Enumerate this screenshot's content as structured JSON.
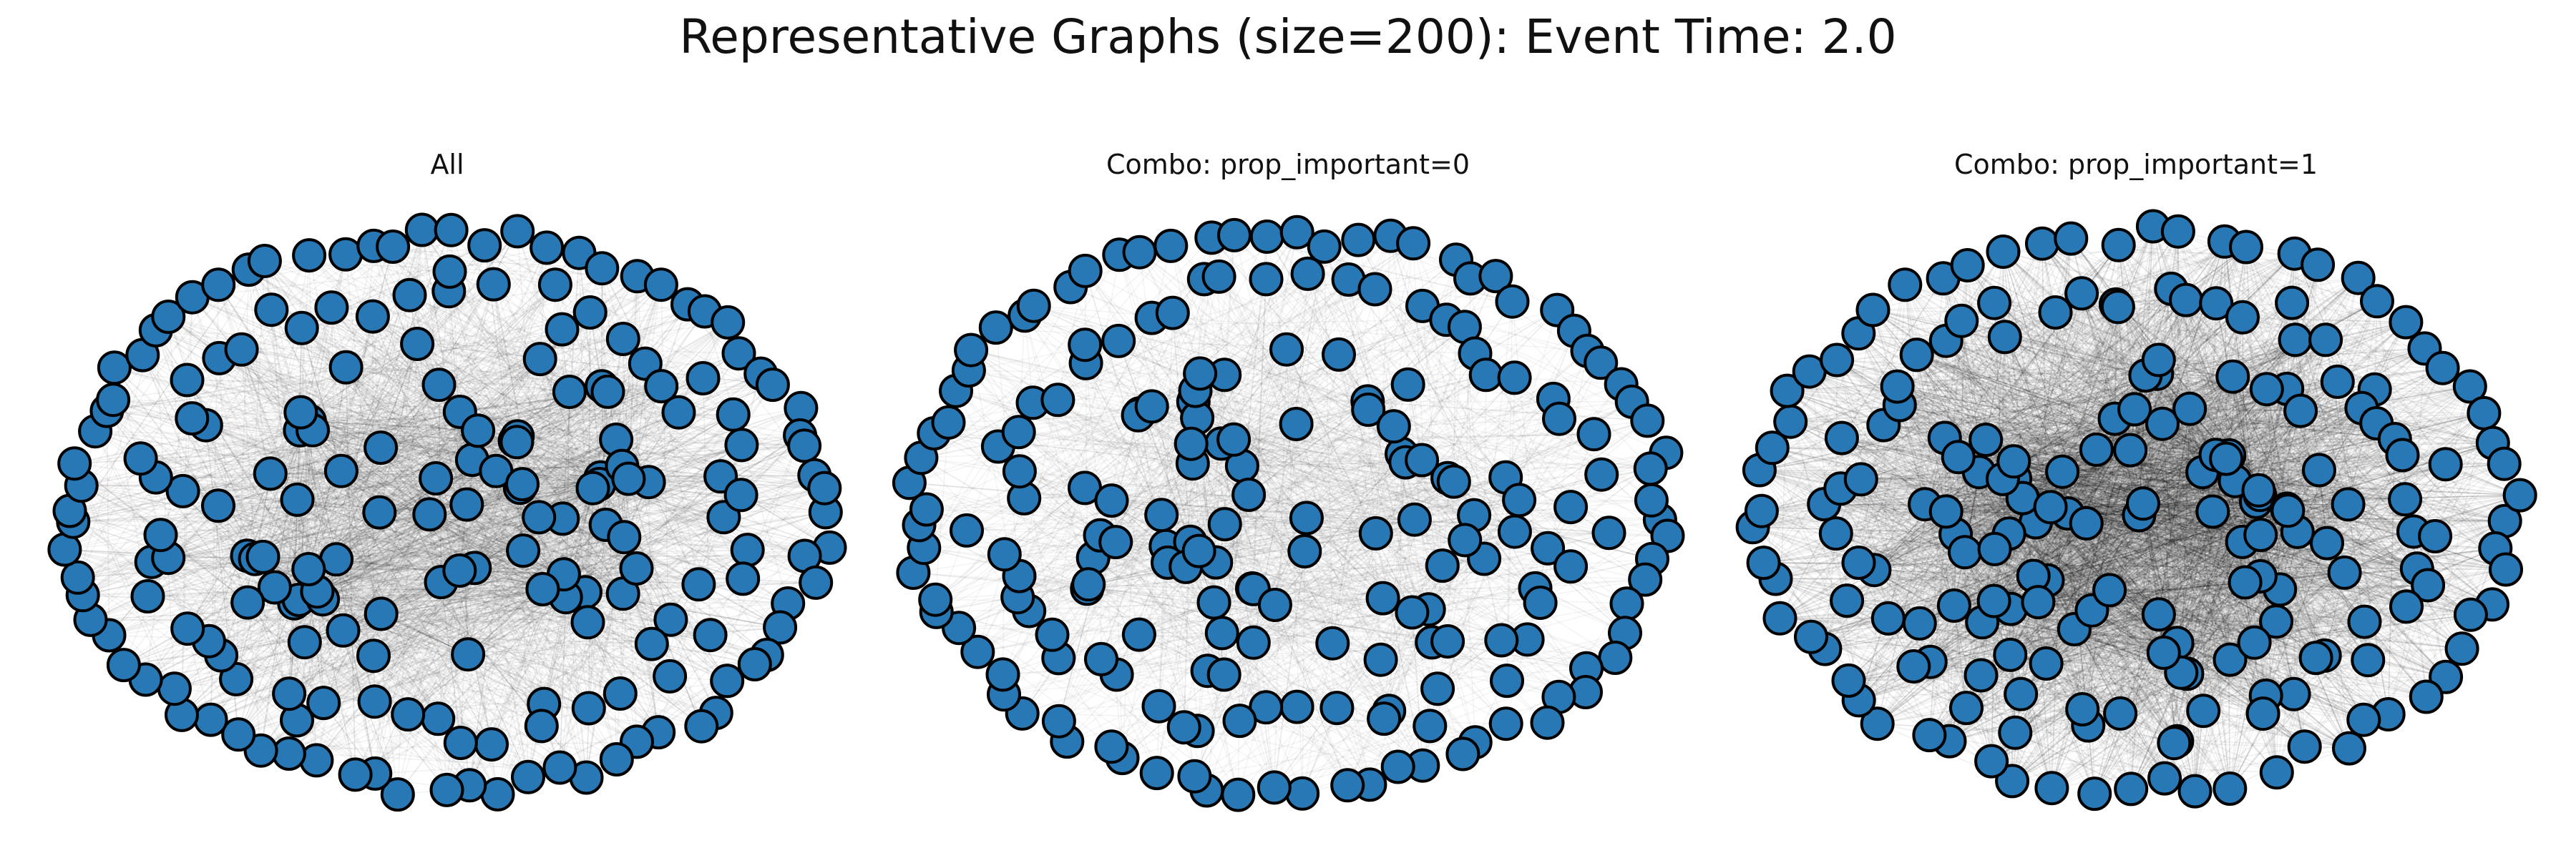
{
  "figure": {
    "title": "Representative Graphs (size=200): Event Time: 2.0"
  },
  "colors": {
    "node_fill": "#2878b5",
    "node_edge": "#000000",
    "edge_color": "#000000",
    "background": "#ffffff"
  },
  "panels": [
    {
      "title": "All",
      "node_count": 200,
      "edge_density": "medium"
    },
    {
      "title": "Combo: prop_important=0",
      "node_count": 200,
      "edge_density": "low"
    },
    {
      "title": "Combo: prop_important=1",
      "node_count": 200,
      "edge_density": "high"
    }
  ]
}
